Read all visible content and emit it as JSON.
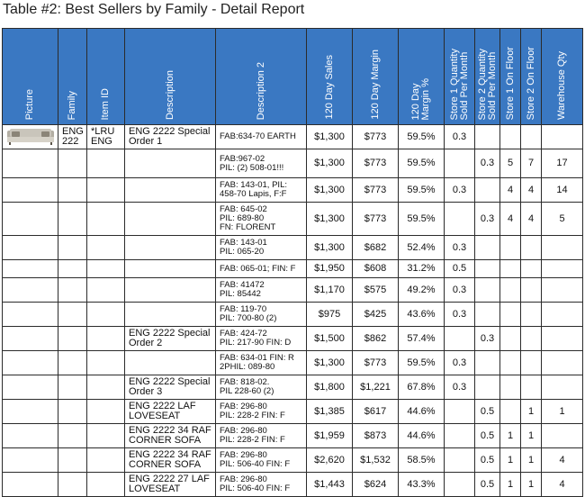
{
  "title": "Table #2: Best Sellers by Family - Detail Report",
  "headers": {
    "picture": "Picture",
    "family": "Family",
    "item_id": "Item ID",
    "description": "Description",
    "description2": "Description 2",
    "sales": "120 Day Sales",
    "margin": "120 Day Margin",
    "margin_pct_l1": "120 Day",
    "margin_pct_l2": "Margin %",
    "store1_qty_l1": "Store 1 Quantity",
    "store1_qty_l2": "Sold Per Month",
    "store2_qty_l1": "Store 2 Quantity",
    "store2_qty_l2": "Sold Per Month",
    "store1_floor": "Store 1 On Floor",
    "store2_floor": "Store 2 On Floor",
    "warehouse": "Warehouse Qty"
  },
  "picture_icon": "sofa-icon",
  "rows": [
    {
      "family": "ENG 222",
      "item": "*LRU ENG",
      "desc": "ENG 2222 Special Order 1",
      "d2a": "FAB:634-70 EARTH",
      "d2b": "",
      "d2c": "",
      "sales": "$1,300",
      "margin": "$773",
      "pct": "59.5%",
      "s1q": "0.3",
      "s2q": "",
      "s1f": "",
      "s2f": "",
      "wh": ""
    },
    {
      "family": "",
      "item": "",
      "desc": "",
      "d2a": "FAB:967-02",
      "d2b": "PIL: (2) 508-01!!!",
      "d2c": "",
      "sales": "$1,300",
      "margin": "$773",
      "pct": "59.5%",
      "s1q": "",
      "s2q": "0.3",
      "s1f": "5",
      "s2f": "7",
      "wh": "17"
    },
    {
      "family": "",
      "item": "",
      "desc": "",
      "d2a": "FAB: 143-01, PIL:",
      "d2b": "458-70 Lapis, F:F",
      "d2c": "",
      "sales": "$1,300",
      "margin": "$773",
      "pct": "59.5%",
      "s1q": "0.3",
      "s2q": "",
      "s1f": "4",
      "s2f": "4",
      "wh": "14"
    },
    {
      "family": "",
      "item": "",
      "desc": "",
      "d2a": "FAB: 645-02",
      "d2b": "PIL: 689-80",
      "d2c": "FN: FLORENT",
      "sales": "$1,300",
      "margin": "$773",
      "pct": "59.5%",
      "s1q": "",
      "s2q": "0.3",
      "s1f": "4",
      "s2f": "4",
      "wh": "5"
    },
    {
      "family": "",
      "item": "",
      "desc": "",
      "d2a": "FAB: 143-01",
      "d2b": "PIL: 065-20",
      "d2c": "",
      "sales": "$1,300",
      "margin": "$682",
      "pct": "52.4%",
      "s1q": "0.3",
      "s2q": "",
      "s1f": "",
      "s2f": "",
      "wh": ""
    },
    {
      "family": "",
      "item": "",
      "desc": "",
      "d2a": "FAB: 065-01; FIN: F",
      "d2b": "",
      "d2c": "",
      "sales": "$1,950",
      "margin": "$608",
      "pct": "31.2%",
      "s1q": "0.5",
      "s2q": "",
      "s1f": "",
      "s2f": "",
      "wh": ""
    },
    {
      "family": "",
      "item": "",
      "desc": "",
      "d2a": "FAB: 41472",
      "d2b": "PIL: 85442",
      "d2c": "",
      "sales": "$1,170",
      "margin": "$575",
      "pct": "49.2%",
      "s1q": "0.3",
      "s2q": "",
      "s1f": "",
      "s2f": "",
      "wh": ""
    },
    {
      "family": "",
      "item": "",
      "desc": "",
      "d2a": "FAB: 119-70",
      "d2b": "PIL: 700-80 (2)",
      "d2c": "",
      "sales": "$975",
      "margin": "$425",
      "pct": "43.6%",
      "s1q": "0.3",
      "s2q": "",
      "s1f": "",
      "s2f": "",
      "wh": ""
    },
    {
      "family": "",
      "item": "",
      "desc": "ENG 2222 Special Order 2",
      "d2a": "FAB: 424-72",
      "d2b": "PIL: 217-90 FIN: D",
      "d2c": "",
      "sales": "$1,500",
      "margin": "$862",
      "pct": "57.4%",
      "s1q": "",
      "s2q": "0.3",
      "s1f": "",
      "s2f": "",
      "wh": ""
    },
    {
      "family": "",
      "item": "",
      "desc": "",
      "d2a": "FAB: 634-01 FIN: R",
      "d2b": "2PHIL: 089-80",
      "d2c": "",
      "sales": "$1,300",
      "margin": "$773",
      "pct": "59.5%",
      "s1q": "0.3",
      "s2q": "",
      "s1f": "",
      "s2f": "",
      "wh": ""
    },
    {
      "family": "",
      "item": "",
      "desc": "ENG 2222 Special Order 3",
      "d2a": "FAB: 818-02.",
      "d2b": "PIL 228-60 (2)",
      "d2c": "",
      "sales": "$1,800",
      "margin": "$1,221",
      "pct": "67.8%",
      "s1q": "0.3",
      "s2q": "",
      "s1f": "",
      "s2f": "",
      "wh": ""
    },
    {
      "family": "",
      "item": "",
      "desc": "ENG 2222 LAF LOVESEAT",
      "d2a": "FAB: 296-80",
      "d2b": "PIL: 228-2 FIN: F",
      "d2c": "",
      "sales": "$1,385",
      "margin": "$617",
      "pct": "44.6%",
      "s1q": "",
      "s2q": "0.5",
      "s1f": "",
      "s2f": "1",
      "wh": "1"
    },
    {
      "family": "",
      "item": "",
      "desc": "ENG 2222 34 RAF CORNER SOFA",
      "d2a": "FAB: 296-80",
      "d2b": "PIL: 228-2 FIN: F",
      "d2c": "",
      "sales": "$1,959",
      "margin": "$873",
      "pct": "44.6%",
      "s1q": "",
      "s2q": "0.5",
      "s1f": "1",
      "s2f": "1",
      "wh": ""
    },
    {
      "family": "",
      "item": "",
      "desc": "ENG 2222 34 RAF CORNER SOFA",
      "d2a": "FAB: 296-80",
      "d2b": "PIL: 506-40 FIN: F",
      "d2c": "",
      "sales": "$2,620",
      "margin": "$1,532",
      "pct": "58.5%",
      "s1q": "",
      "s2q": "0.5",
      "s1f": "1",
      "s2f": "1",
      "wh": "4"
    },
    {
      "family": "",
      "item": "",
      "desc": "ENG 2222 27 LAF LOVESEAT",
      "d2a": "FAB: 296-80",
      "d2b": "PIL: 506-40 FIN: F",
      "d2c": "",
      "sales": "$1,443",
      "margin": "$624",
      "pct": "43.3%",
      "s1q": "",
      "s2q": "0.5",
      "s1f": "1",
      "s2f": "1",
      "wh": "4"
    }
  ]
}
